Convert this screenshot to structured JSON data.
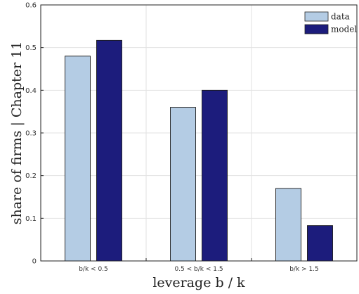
{
  "chart_data": {
    "type": "bar",
    "categories": [
      "b/k < 0.5",
      "0.5 < b/k < 1.5",
      "b/k > 1.5"
    ],
    "series": [
      {
        "name": "data",
        "values": [
          0.48,
          0.36,
          0.17
        ],
        "color": "#b4cce4"
      },
      {
        "name": "model",
        "values": [
          0.517,
          0.4,
          0.083
        ],
        "color": "#1c1c7c"
      }
    ],
    "xlabel": "leverage b / k",
    "ylabel": "share of firms | Chapter 11",
    "ylim": [
      0,
      0.6
    ],
    "yticks": [
      "0",
      "0.1",
      "0.2",
      "0.3",
      "0.4",
      "0.5",
      "0.6"
    ],
    "grid": true,
    "legend_position": "top-right"
  }
}
